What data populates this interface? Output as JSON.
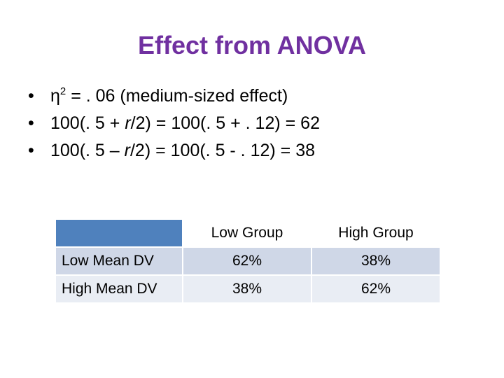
{
  "title": "Effect from ANOVA",
  "bullets": [
    {
      "marker": "•",
      "pre": "η",
      "sup": "2",
      "post": " = . 06 (medium-sized effect)"
    },
    {
      "marker": "•",
      "pre": "100(. 5 + ",
      "italic": "r",
      "post": "/2) = 100(. 5 + . 12) = 62"
    },
    {
      "marker": "•",
      "pre": "100(. 5 – ",
      "italic": "r",
      "post": "/2) = 100(. 5 - . 12)  = 38"
    }
  ],
  "table": {
    "columns": [
      "",
      "Low Group",
      "High Group"
    ],
    "rows": [
      {
        "label": "Low Mean DV",
        "values": [
          "62%",
          "38%"
        ]
      },
      {
        "label": "High Mean DV",
        "values": [
          "38%",
          "62%"
        ]
      }
    ]
  },
  "colors": {
    "title": "#7030a0",
    "header_accent": "#4f81bd",
    "row_band_1": "#cfd7e7",
    "row_band_2": "#e9edf4"
  }
}
